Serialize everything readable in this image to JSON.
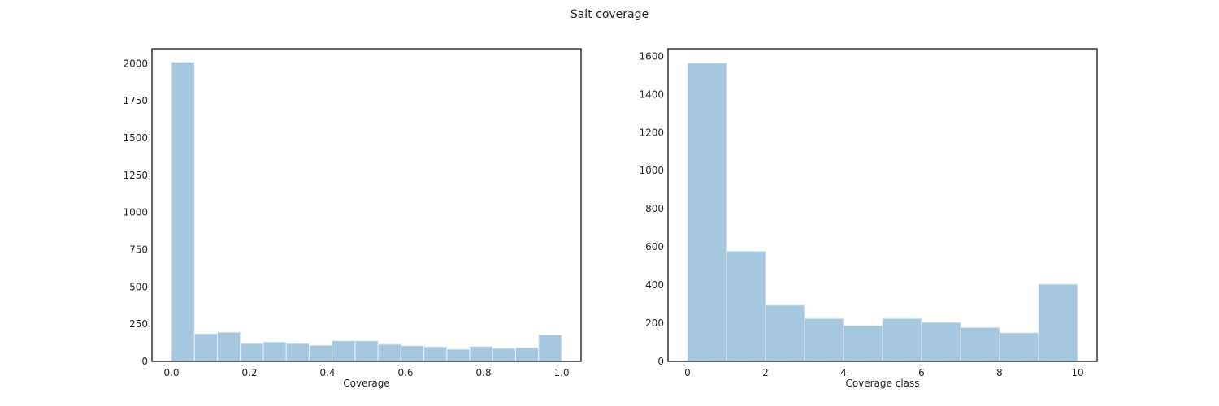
{
  "figure": {
    "title": "Salt coverage"
  },
  "chart_data": [
    {
      "type": "bar",
      "subtype": "histogram",
      "title": "",
      "xlabel": "Coverage",
      "ylabel": "",
      "xlim": [
        -0.05,
        1.05
      ],
      "ylim": [
        0,
        2100
      ],
      "bin_edges": [
        0.0,
        0.058824,
        0.117647,
        0.176471,
        0.235294,
        0.294118,
        0.352941,
        0.411765,
        0.470588,
        0.529412,
        0.588235,
        0.647059,
        0.705882,
        0.764706,
        0.823529,
        0.882353,
        0.941176,
        1.0
      ],
      "values": [
        2010,
        185,
        195,
        120,
        130,
        120,
        108,
        138,
        138,
        115,
        105,
        98,
        82,
        100,
        88,
        93,
        178
      ],
      "xticks": [
        "0.0",
        "0.2",
        "0.4",
        "0.6",
        "0.8",
        "1.0"
      ],
      "xtick_values": [
        0.0,
        0.2,
        0.4,
        0.6,
        0.8,
        1.0
      ],
      "yticks": [
        "0",
        "250",
        "500",
        "750",
        "1000",
        "1250",
        "1500",
        "1750",
        "2000"
      ],
      "ytick_values": [
        0,
        250,
        500,
        750,
        1000,
        1250,
        1500,
        1750,
        2000
      ],
      "grid": false,
      "color": "#a5c8e0"
    },
    {
      "type": "bar",
      "subtype": "histogram",
      "title": "",
      "xlabel": "Coverage class",
      "ylabel": "",
      "xlim": [
        -0.5,
        10.5
      ],
      "ylim": [
        0,
        1640
      ],
      "bin_edges": [
        0,
        1,
        2,
        3,
        4,
        5,
        6,
        7,
        8,
        9,
        10
      ],
      "values": [
        1565,
        578,
        295,
        225,
        188,
        225,
        205,
        178,
        150,
        405
      ],
      "xticks": [
        "0",
        "2",
        "4",
        "6",
        "8",
        "10"
      ],
      "xtick_values": [
        0,
        2,
        4,
        6,
        8,
        10
      ],
      "yticks": [
        "0",
        "200",
        "400",
        "600",
        "800",
        "1000",
        "1200",
        "1400",
        "1600"
      ],
      "ytick_values": [
        0,
        200,
        400,
        600,
        800,
        1000,
        1200,
        1400,
        1600
      ],
      "grid": false,
      "color": "#a5c8e0"
    }
  ]
}
